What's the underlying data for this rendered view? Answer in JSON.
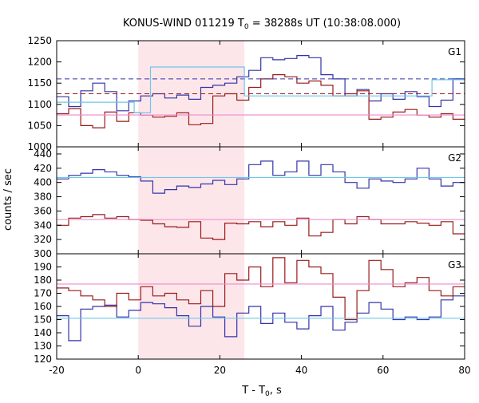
{
  "title_text": "KONUS-WIND 011219 T",
  "title_sub": "0",
  "title_rest": " = 38288s UT (10:38:08.000)",
  "xlabel_main": "T - T",
  "xlabel_sub": "0",
  "xlabel_rest": ", s",
  "ylabel": "counts / sec",
  "colors": {
    "blue": "#3333aa",
    "red": "#9a1a1a",
    "lightblue": "#6ec6ea",
    "pink": "#ee88cc",
    "shade": "#fde6ea",
    "axis": "#000000"
  },
  "chart_data": [
    {
      "panel": "G1",
      "type": "line",
      "xlim": [
        -20,
        80
      ],
      "ylim": [
        1000,
        1250
      ],
      "yticks": [
        1000,
        1050,
        1100,
        1150,
        1200,
        1250
      ],
      "shaded_interval": [
        0,
        26
      ],
      "x_step": 2.944,
      "x_start": -20,
      "series": [
        {
          "color": "blue",
          "values": [
            1118,
            1095,
            1132,
            1150,
            1130,
            1085,
            1108,
            1120,
            1125,
            1115,
            1122,
            1112,
            1140,
            1145,
            1150,
            1165,
            1180,
            1210,
            1205,
            1208,
            1215,
            1210,
            1170,
            1160,
            1120,
            1135,
            1108,
            1125,
            1112,
            1130,
            1118,
            1095,
            1110,
            1160,
            1130,
            1118,
            1105,
            1122,
            1110,
            1125,
            1112,
            1160,
            1130,
            1118,
            1125,
            1095,
            1068,
            1130,
            1122,
            1112,
            1158,
            1160,
            1155,
            1150
          ]
        },
        {
          "color": "red",
          "values": [
            1078,
            1090,
            1050,
            1045,
            1082,
            1060,
            1080,
            1075,
            1070,
            1072,
            1080,
            1052,
            1055,
            1120,
            1125,
            1110,
            1140,
            1160,
            1170,
            1165,
            1150,
            1155,
            1145,
            1120,
            1125,
            1132,
            1065,
            1070,
            1082,
            1088,
            1075,
            1070,
            1078,
            1065,
            1085,
            1070,
            1080,
            1085,
            1075,
            1060,
            1062,
            1075,
            1080,
            1082,
            1068,
            1120,
            1055,
            1070,
            1085,
            1050,
            1088,
            1078,
            1082,
            1072
          ]
        }
      ],
      "reference_lines": [
        {
          "color": "blue",
          "style": "dashed",
          "value": 1160
        },
        {
          "color": "red",
          "style": "dashed",
          "value": 1125
        },
        {
          "color": "pink",
          "style": "solid",
          "value": 1075
        },
        {
          "color": "lightblue",
          "style": "step",
          "segments": [
            [
              -20,
              -1,
              1105
            ],
            [
              -1,
              3,
              1080
            ],
            [
              3,
              26,
              1188
            ],
            [
              26,
              72,
              1120
            ],
            [
              72,
              80,
              1158
            ]
          ]
        }
      ]
    },
    {
      "panel": "G2",
      "type": "line",
      "xlim": [
        -20,
        80
      ],
      "ylim": [
        300,
        450
      ],
      "yticks": [
        300,
        320,
        340,
        360,
        380,
        400,
        420,
        440
      ],
      "shaded_interval": [
        0,
        26
      ],
      "x_step": 2.944,
      "x_start": -20,
      "series": [
        {
          "color": "blue",
          "values": [
            405,
            410,
            413,
            418,
            415,
            410,
            408,
            402,
            385,
            390,
            395,
            393,
            398,
            403,
            397,
            405,
            425,
            430,
            410,
            415,
            430,
            410,
            425,
            415,
            400,
            392,
            405,
            402,
            400,
            405,
            420,
            405,
            395,
            400,
            410,
            407,
            413,
            425,
            412,
            430,
            433,
            418,
            410,
            408,
            415,
            420,
            405,
            400,
            408,
            410,
            400,
            405,
            420,
            418
          ]
        },
        {
          "color": "red",
          "values": [
            340,
            350,
            352,
            355,
            350,
            352,
            348,
            347,
            342,
            338,
            337,
            345,
            322,
            320,
            343,
            342,
            345,
            338,
            345,
            340,
            350,
            325,
            330,
            348,
            342,
            352,
            348,
            342,
            342,
            345,
            343,
            340,
            345,
            328,
            350,
            347,
            322,
            345,
            352,
            356,
            348,
            350,
            325,
            335,
            342,
            342,
            322,
            338,
            336,
            340,
            340,
            335,
            345,
            330
          ]
        }
      ],
      "reference_lines": [
        {
          "color": "lightblue",
          "style": "solid",
          "value": 407
        },
        {
          "color": "pink",
          "style": "solid",
          "value": 348
        }
      ]
    },
    {
      "panel": "G3",
      "type": "line",
      "xlim": [
        -20,
        80
      ],
      "ylim": [
        120,
        200
      ],
      "yticks": [
        120,
        130,
        140,
        150,
        160,
        170,
        180,
        190,
        200
      ],
      "shaded_interval": [
        0,
        26
      ],
      "x_step": 2.944,
      "x_start": -20,
      "series": [
        {
          "color": "blue",
          "values": [
            153,
            134,
            158,
            160,
            161,
            152,
            157,
            163,
            162,
            159,
            153,
            145,
            160,
            152,
            137,
            155,
            160,
            147,
            155,
            148,
            143,
            153,
            160,
            142,
            148,
            155,
            163,
            158,
            150,
            152,
            150,
            152,
            165,
            168,
            163,
            150,
            145,
            155,
            158,
            152,
            150,
            148,
            150,
            152,
            148,
            153,
            150,
            152,
            160,
            165,
            158,
            150,
            152,
            150
          ]
        },
        {
          "color": "red",
          "values": [
            174,
            172,
            168,
            165,
            160,
            170,
            165,
            175,
            168,
            170,
            165,
            162,
            172,
            160,
            185,
            180,
            190,
            175,
            197,
            178,
            195,
            190,
            185,
            167,
            150,
            172,
            195,
            188,
            175,
            178,
            182,
            172,
            168,
            175,
            178,
            185,
            190,
            172,
            170,
            178,
            175,
            170,
            168,
            188,
            176,
            180,
            175,
            172,
            165,
            160,
            162,
            170,
            172,
            172
          ]
        }
      ],
      "reference_lines": [
        {
          "color": "pink",
          "style": "solid",
          "value": 177
        },
        {
          "color": "lightblue",
          "style": "solid",
          "value": 151
        }
      ]
    }
  ],
  "panel_labels": [
    "G1",
    "G2",
    "G3"
  ],
  "xticks": [
    -20,
    0,
    20,
    40,
    60,
    80
  ]
}
